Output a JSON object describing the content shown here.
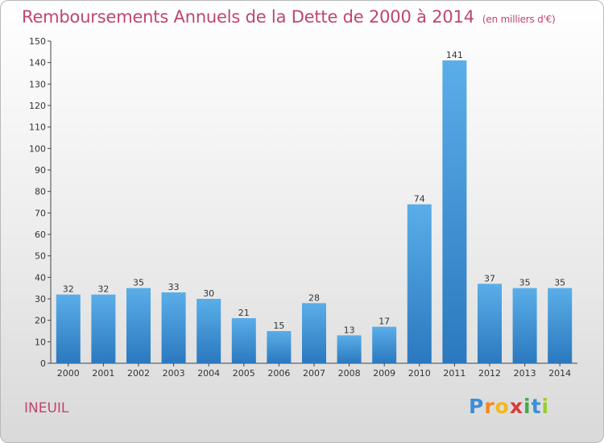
{
  "title": "Remboursements Annuels de la Dette de 2000 à 2014",
  "subtitle": "(en milliers d'€)",
  "commune": "INEUIL",
  "logo": {
    "letters": [
      "P",
      "r",
      "o",
      "x",
      "i",
      "t",
      "i"
    ],
    "colors": [
      "#3b8fd6",
      "#f08a1c",
      "#f4b81b",
      "#d63b3b",
      "#4aa84a",
      "#3b8fd6",
      "#9acd32"
    ]
  },
  "colors": {
    "bar_top": "#5aaee8",
    "bar_bottom": "#2b78bf",
    "title": "#c0456e"
  },
  "chart_data": {
    "type": "bar",
    "categories": [
      "2000",
      "2001",
      "2002",
      "2003",
      "2004",
      "2005",
      "2006",
      "2007",
      "2008",
      "2009",
      "2010",
      "2011",
      "2012",
      "2013",
      "2014"
    ],
    "values": [
      32,
      32,
      35,
      33,
      30,
      21,
      15,
      28,
      13,
      17,
      74,
      141,
      37,
      35,
      35
    ],
    "ylim": [
      0,
      150
    ],
    "yticks": [
      0,
      10,
      20,
      30,
      40,
      50,
      60,
      70,
      80,
      90,
      100,
      110,
      120,
      130,
      140,
      150
    ],
    "grid": false,
    "data_labels": true
  }
}
